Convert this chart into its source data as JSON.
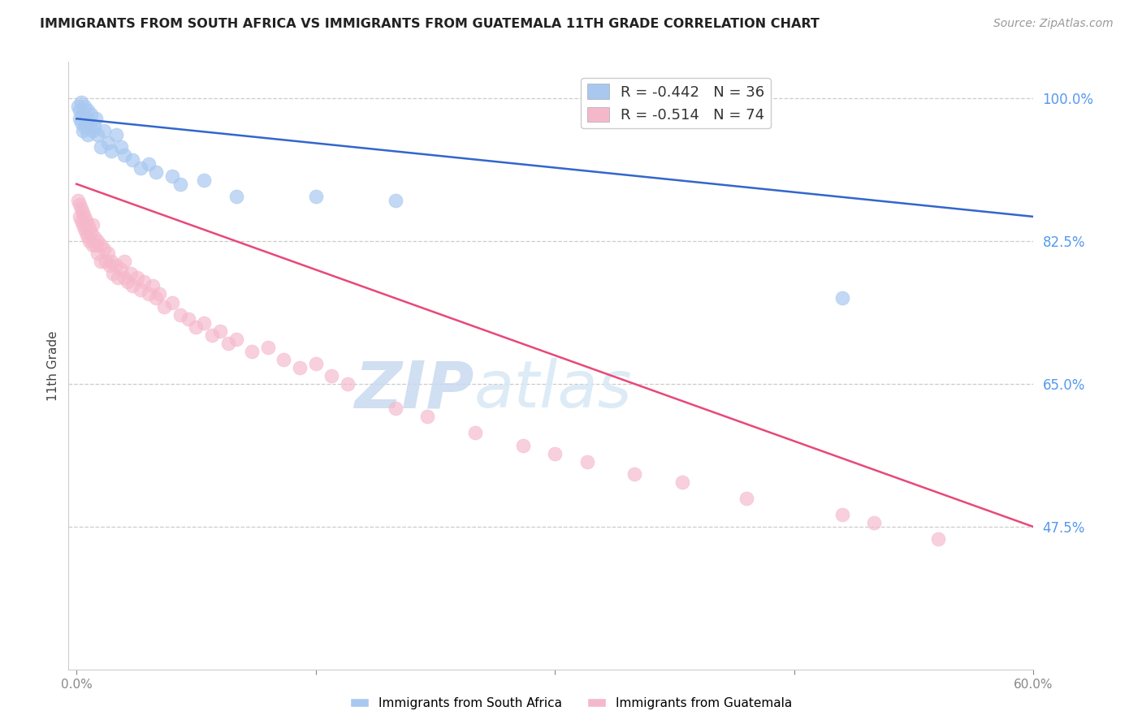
{
  "title": "IMMIGRANTS FROM SOUTH AFRICA VS IMMIGRANTS FROM GUATEMALA 11TH GRADE CORRELATION CHART",
  "source": "Source: ZipAtlas.com",
  "ylabel": "11th Grade",
  "ytick_labels": [
    "100.0%",
    "82.5%",
    "65.0%",
    "47.5%"
  ],
  "ytick_values": [
    1.0,
    0.825,
    0.65,
    0.475
  ],
  "blue_color": "#a8c8f0",
  "pink_color": "#f5b8cb",
  "blue_line_color": "#3366cc",
  "pink_line_color": "#e84878",
  "title_color": "#222222",
  "source_color": "#999999",
  "axis_label_color": "#444444",
  "ytick_color": "#5599ee",
  "watermark_zip": "ZIP",
  "watermark_atlas": "atlas",
  "watermark_color": "#dce8f8",
  "blue_scatter": [
    [
      0.001,
      0.99
    ],
    [
      0.002,
      0.985
    ],
    [
      0.002,
      0.975
    ],
    [
      0.003,
      0.995
    ],
    [
      0.003,
      0.97
    ],
    [
      0.004,
      0.98
    ],
    [
      0.004,
      0.96
    ],
    [
      0.005,
      0.99
    ],
    [
      0.005,
      0.965
    ],
    [
      0.006,
      0.975
    ],
    [
      0.007,
      0.985
    ],
    [
      0.007,
      0.955
    ],
    [
      0.008,
      0.97
    ],
    [
      0.009,
      0.98
    ],
    [
      0.01,
      0.96
    ],
    [
      0.011,
      0.965
    ],
    [
      0.012,
      0.975
    ],
    [
      0.013,
      0.955
    ],
    [
      0.015,
      0.94
    ],
    [
      0.017,
      0.96
    ],
    [
      0.02,
      0.945
    ],
    [
      0.022,
      0.935
    ],
    [
      0.025,
      0.955
    ],
    [
      0.028,
      0.94
    ],
    [
      0.03,
      0.93
    ],
    [
      0.035,
      0.925
    ],
    [
      0.04,
      0.915
    ],
    [
      0.045,
      0.92
    ],
    [
      0.05,
      0.91
    ],
    [
      0.06,
      0.905
    ],
    [
      0.065,
      0.895
    ],
    [
      0.08,
      0.9
    ],
    [
      0.1,
      0.88
    ],
    [
      0.15,
      0.88
    ],
    [
      0.2,
      0.875
    ],
    [
      0.48,
      0.755
    ]
  ],
  "pink_scatter": [
    [
      0.001,
      0.875
    ],
    [
      0.002,
      0.87
    ],
    [
      0.002,
      0.855
    ],
    [
      0.003,
      0.865
    ],
    [
      0.003,
      0.85
    ],
    [
      0.004,
      0.86
    ],
    [
      0.004,
      0.845
    ],
    [
      0.005,
      0.855
    ],
    [
      0.005,
      0.84
    ],
    [
      0.006,
      0.85
    ],
    [
      0.006,
      0.835
    ],
    [
      0.007,
      0.845
    ],
    [
      0.007,
      0.83
    ],
    [
      0.008,
      0.84
    ],
    [
      0.008,
      0.825
    ],
    [
      0.009,
      0.835
    ],
    [
      0.01,
      0.845
    ],
    [
      0.01,
      0.82
    ],
    [
      0.011,
      0.83
    ],
    [
      0.012,
      0.82
    ],
    [
      0.013,
      0.825
    ],
    [
      0.013,
      0.81
    ],
    [
      0.015,
      0.82
    ],
    [
      0.015,
      0.8
    ],
    [
      0.017,
      0.815
    ],
    [
      0.018,
      0.8
    ],
    [
      0.02,
      0.81
    ],
    [
      0.021,
      0.795
    ],
    [
      0.022,
      0.8
    ],
    [
      0.023,
      0.785
    ],
    [
      0.025,
      0.795
    ],
    [
      0.026,
      0.78
    ],
    [
      0.028,
      0.79
    ],
    [
      0.03,
      0.78
    ],
    [
      0.03,
      0.8
    ],
    [
      0.032,
      0.775
    ],
    [
      0.034,
      0.785
    ],
    [
      0.035,
      0.77
    ],
    [
      0.038,
      0.78
    ],
    [
      0.04,
      0.765
    ],
    [
      0.042,
      0.775
    ],
    [
      0.045,
      0.76
    ],
    [
      0.048,
      0.77
    ],
    [
      0.05,
      0.755
    ],
    [
      0.052,
      0.76
    ],
    [
      0.055,
      0.745
    ],
    [
      0.06,
      0.75
    ],
    [
      0.065,
      0.735
    ],
    [
      0.07,
      0.73
    ],
    [
      0.075,
      0.72
    ],
    [
      0.08,
      0.725
    ],
    [
      0.085,
      0.71
    ],
    [
      0.09,
      0.715
    ],
    [
      0.095,
      0.7
    ],
    [
      0.1,
      0.705
    ],
    [
      0.11,
      0.69
    ],
    [
      0.12,
      0.695
    ],
    [
      0.13,
      0.68
    ],
    [
      0.14,
      0.67
    ],
    [
      0.15,
      0.675
    ],
    [
      0.16,
      0.66
    ],
    [
      0.17,
      0.65
    ],
    [
      0.2,
      0.62
    ],
    [
      0.22,
      0.61
    ],
    [
      0.25,
      0.59
    ],
    [
      0.28,
      0.575
    ],
    [
      0.3,
      0.565
    ],
    [
      0.32,
      0.555
    ],
    [
      0.35,
      0.54
    ],
    [
      0.38,
      0.53
    ],
    [
      0.42,
      0.51
    ],
    [
      0.48,
      0.49
    ],
    [
      0.5,
      0.48
    ],
    [
      0.54,
      0.46
    ]
  ],
  "blue_line_x": [
    0.0,
    0.6
  ],
  "blue_line_y": [
    0.975,
    0.855
  ],
  "pink_line_x": [
    0.0,
    0.6
  ],
  "pink_line_y": [
    0.895,
    0.475
  ],
  "xmin": -0.005,
  "xmax": 0.6,
  "ymin": 0.3,
  "ymax": 1.045,
  "extra_xticks": [
    0.15,
    0.3,
    0.45
  ],
  "bottom_legend_labels": [
    "Immigrants from South Africa",
    "Immigrants from Guatemala"
  ]
}
